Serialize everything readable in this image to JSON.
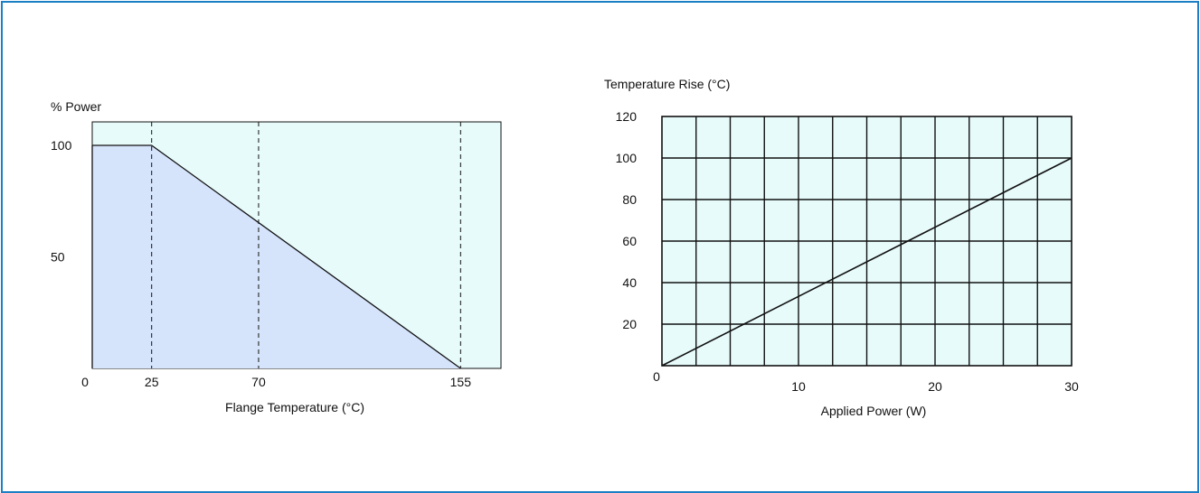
{
  "colors": {
    "border": "#1a7fc4",
    "plot_background": "#e8fbfb",
    "area_fill": "#d5e3fb",
    "line": "#111111"
  },
  "chart_data": [
    {
      "type": "area",
      "title": "",
      "xlabel": "Flange Temperature (°C)",
      "ylabel": "% Power",
      "x": [
        0,
        25,
        155
      ],
      "y": [
        100,
        100,
        0
      ],
      "xlim": [
        0,
        172
      ],
      "ylim": [
        0,
        100
      ],
      "xticks": [
        {
          "value": 0,
          "label": "0"
        },
        {
          "value": 25,
          "label": "25"
        },
        {
          "value": 70,
          "label": "70"
        },
        {
          "value": 155,
          "label": "155"
        }
      ],
      "yticks": [
        {
          "value": 100,
          "label": "100"
        },
        {
          "value": 50,
          "label": "50"
        }
      ],
      "reference_lines_x": [
        25,
        70,
        155
      ],
      "reference_line_style": "dashed",
      "grid": false
    },
    {
      "type": "line",
      "title": "",
      "xlabel": "Applied Power (W)",
      "ylabel": "Temperature Rise (°C)",
      "x": [
        0,
        30
      ],
      "y": [
        0,
        100
      ],
      "xlim": [
        0,
        30
      ],
      "ylim": [
        0,
        120
      ],
      "xticks": [
        {
          "value": 0,
          "label": "0"
        },
        {
          "value": 10,
          "label": "10"
        },
        {
          "value": 20,
          "label": "20"
        },
        {
          "value": 30,
          "label": "30"
        }
      ],
      "yticks": [
        {
          "value": 20,
          "label": "20"
        },
        {
          "value": 40,
          "label": "40"
        },
        {
          "value": 60,
          "label": "60"
        },
        {
          "value": 80,
          "label": "80"
        },
        {
          "value": 100,
          "label": "100"
        },
        {
          "value": 120,
          "label": "120"
        }
      ],
      "grid": true,
      "grid_columns": 12,
      "grid_rows": 6
    }
  ]
}
